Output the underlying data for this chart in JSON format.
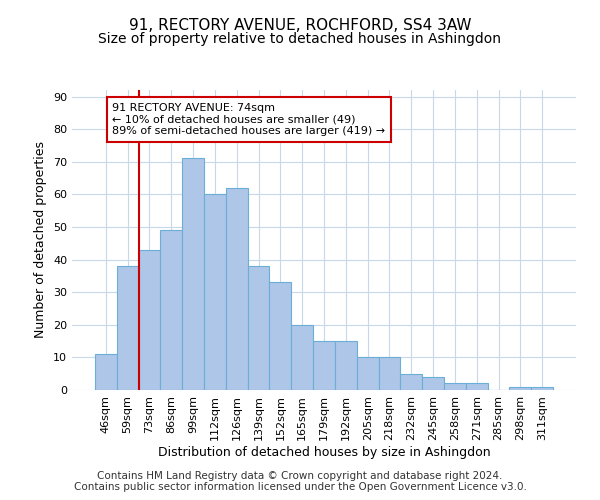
{
  "title1": "91, RECTORY AVENUE, ROCHFORD, SS4 3AW",
  "title2": "Size of property relative to detached houses in Ashingdon",
  "xlabel": "Distribution of detached houses by size in Ashingdon",
  "ylabel": "Number of detached properties",
  "categories": [
    "46sqm",
    "59sqm",
    "73sqm",
    "86sqm",
    "99sqm",
    "112sqm",
    "126sqm",
    "139sqm",
    "152sqm",
    "165sqm",
    "179sqm",
    "192sqm",
    "205sqm",
    "218sqm",
    "232sqm",
    "245sqm",
    "258sqm",
    "271sqm",
    "285sqm",
    "298sqm",
    "311sqm"
  ],
  "values": [
    11,
    38,
    43,
    49,
    71,
    60,
    62,
    38,
    33,
    20,
    15,
    15,
    10,
    10,
    5,
    4,
    2,
    2,
    0,
    1,
    1
  ],
  "bar_color": "#aec6e8",
  "bar_edge_color": "#6baed6",
  "red_line_index": 2,
  "annotation_text": "91 RECTORY AVENUE: 74sqm\n← 10% of detached houses are smaller (49)\n89% of semi-detached houses are larger (419) →",
  "annotation_box_color": "#ffffff",
  "annotation_box_edge": "#cc0000",
  "ylim": [
    0,
    92
  ],
  "yticks": [
    0,
    10,
    20,
    30,
    40,
    50,
    60,
    70,
    80,
    90
  ],
  "footer1": "Contains HM Land Registry data © Crown copyright and database right 2024.",
  "footer2": "Contains public sector information licensed under the Open Government Licence v3.0.",
  "bg_color": "#ffffff",
  "grid_color": "#c8d8e8",
  "title1_fontsize": 11,
  "title2_fontsize": 10,
  "xlabel_fontsize": 9,
  "ylabel_fontsize": 9,
  "tick_fontsize": 8,
  "footer_fontsize": 7.5,
  "annot_fontsize": 8
}
